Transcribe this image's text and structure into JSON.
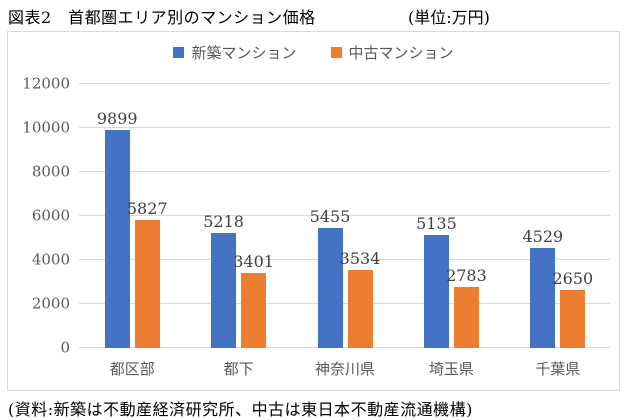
{
  "header": {
    "title": "図表2　首都圏エリア別のマンション価格",
    "unit": "(単位:万円)"
  },
  "legend": {
    "items": [
      {
        "label": "新築マンション",
        "color": "#4472C4"
      },
      {
        "label": "中古マンション",
        "color": "#ED7D31"
      }
    ]
  },
  "chart_data": {
    "type": "bar",
    "title": "図表2　首都圏エリア別のマンション価格",
    "unit_label": "(単位:万円)",
    "categories": [
      "都区部",
      "都下",
      "神奈川県",
      "埼玉県",
      "千葉県"
    ],
    "series": [
      {
        "name": "新築マンション",
        "color": "#4472C4",
        "values": [
          9899,
          5218,
          5455,
          5135,
          4529
        ]
      },
      {
        "name": "中古マンション",
        "color": "#ED7D31",
        "values": [
          5827,
          3401,
          3534,
          2783,
          2650
        ]
      }
    ],
    "ylim": [
      0,
      12000
    ],
    "ytick_step": 2000,
    "grid": true,
    "legend_position": "top",
    "gridline_color": "#d9d9d9",
    "axis_text_color": "#595959",
    "value_label_color": "#404040"
  },
  "footer": {
    "source": "(資料:新築は不動産経済研究所、中古は東日本不動産流通機構)"
  }
}
